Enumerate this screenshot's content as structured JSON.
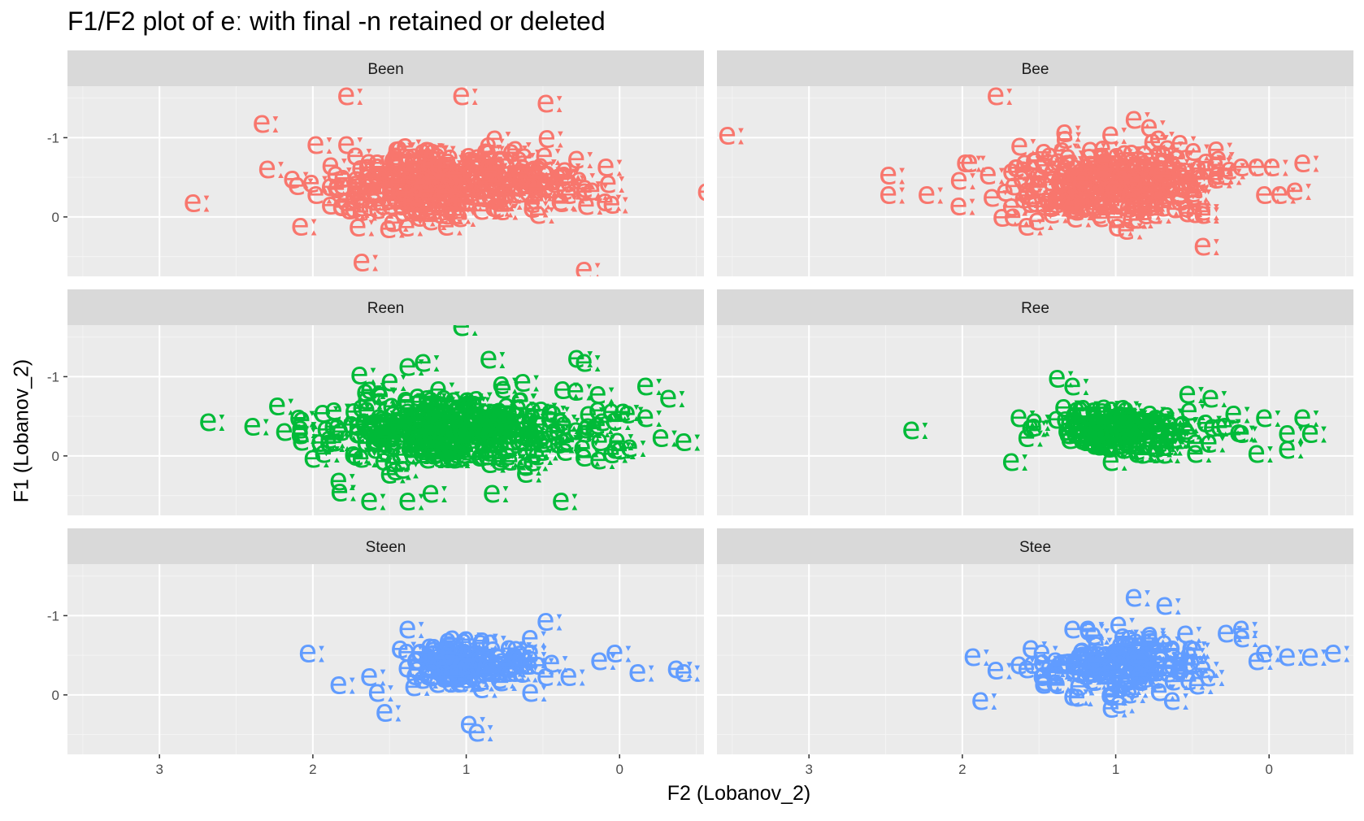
{
  "title": "F1/F2 plot of eː with final -n retained or deleted",
  "chart_data": {
    "type": "scatter",
    "title": "F1/F2 plot of eː with final -n retained or deleted",
    "xlabel": "F2 (Lobanov_2)",
    "ylabel": "F1 (Lobanov_2)",
    "x_reversed": true,
    "y_reversed": true,
    "xlim": [
      3.6,
      -0.55
    ],
    "ylim": [
      -1.65,
      0.75
    ],
    "x_ticks": [
      3,
      2,
      1,
      0
    ],
    "y_ticks": [
      -1,
      0
    ],
    "point_label": "eː",
    "facet_layout": "3 rows x 2 columns",
    "grid": true,
    "panel_background": "#ebebeb",
    "strip_background": "#d9d9d9",
    "facets": [
      {
        "name": "Been",
        "color": "#f8766d",
        "cluster": {
          "cx": 1.1,
          "cy": -0.45,
          "sx": 0.42,
          "sy": 0.24,
          "n": 320
        },
        "points": [
          [
            1.75,
            -1.55
          ],
          [
            1.0,
            -1.55
          ],
          [
            2.3,
            -1.2
          ],
          [
            1.95,
            -0.93
          ],
          [
            1.75,
            -0.93
          ],
          [
            0.25,
            -0.75
          ],
          [
            2.75,
            -0.2
          ],
          [
            2.05,
            0.1
          ],
          [
            1.4,
            -0.3
          ],
          [
            1.6,
            -0.15
          ],
          [
            1.55,
            -0.65
          ],
          [
            1.45,
            0.05
          ],
          [
            1.1,
            0.1
          ],
          [
            0.35,
            -0.2
          ],
          [
            0.15,
            -0.35
          ],
          [
            1.65,
            0.55
          ],
          [
            0.2,
            0.65
          ],
          [
            1.95,
            -0.3
          ],
          [
            0.5,
            -0.05
          ],
          [
            0.3,
            -0.3
          ]
        ]
      },
      {
        "name": "Bee",
        "color": "#f8766d",
        "cluster": {
          "cx": 1.0,
          "cy": -0.45,
          "sx": 0.33,
          "sy": 0.22,
          "n": 280
        },
        "points": [
          [
            3.5,
            -1.05
          ],
          [
            1.75,
            -1.55
          ],
          [
            2.45,
            -0.55
          ],
          [
            2.45,
            -0.3
          ],
          [
            2.2,
            -0.3
          ],
          [
            1.3,
            -1.0
          ],
          [
            0.85,
            -1.25
          ],
          [
            0.75,
            -1.15
          ],
          [
            1.95,
            -0.7
          ],
          [
            1.8,
            -0.55
          ],
          [
            1.65,
            -0.15
          ],
          [
            1.55,
            -0.35
          ],
          [
            1.55,
            0.1
          ],
          [
            0.9,
            0.15
          ],
          [
            0.4,
            -0.05
          ],
          [
            0.4,
            0.35
          ],
          [
            0.3,
            -0.75
          ],
          [
            0.15,
            -0.65
          ],
          [
            0.05,
            -0.65
          ],
          [
            -0.05,
            -0.65
          ],
          [
            0.0,
            -0.3
          ],
          [
            -0.1,
            -0.3
          ],
          [
            -0.2,
            -0.35
          ],
          [
            -0.25,
            -0.7
          ],
          [
            0.55,
            -0.95
          ],
          [
            0.55,
            -0.55
          ]
        ]
      },
      {
        "name": "Reen",
        "color": "#00ba38",
        "cluster": {
          "cx": 1.05,
          "cy": -0.35,
          "sx": 0.45,
          "sy": 0.23,
          "n": 340
        },
        "points": [
          [
            1.0,
            -1.65
          ],
          [
            2.65,
            -0.45
          ],
          [
            2.2,
            -0.65
          ],
          [
            2.05,
            -0.3
          ],
          [
            1.9,
            -0.05
          ],
          [
            1.35,
            -1.15
          ],
          [
            1.25,
            -1.2
          ],
          [
            1.6,
            -0.85
          ],
          [
            0.25,
            -1.25
          ],
          [
            0.2,
            -1.2
          ],
          [
            0.6,
            -0.95
          ],
          [
            -0.2,
            -0.9
          ],
          [
            -0.35,
            -0.75
          ],
          [
            -0.2,
            -0.5
          ],
          [
            -0.45,
            -0.2
          ],
          [
            1.8,
            0.3
          ],
          [
            1.6,
            0.55
          ],
          [
            1.35,
            0.55
          ],
          [
            0.8,
            0.45
          ],
          [
            0.35,
            0.55
          ],
          [
            1.2,
            0.45
          ],
          [
            0.4,
            -0.55
          ],
          [
            0.1,
            -0.2
          ],
          [
            0.0,
            -0.1
          ],
          [
            -0.3,
            -0.25
          ]
        ]
      },
      {
        "name": "Ree",
        "color": "#00ba38",
        "cluster": {
          "cx": 0.95,
          "cy": -0.35,
          "sx": 0.25,
          "sy": 0.15,
          "n": 150
        },
        "points": [
          [
            2.3,
            -0.35
          ],
          [
            1.65,
            0.05
          ],
          [
            1.6,
            -0.5
          ],
          [
            1.55,
            -0.25
          ],
          [
            1.35,
            -1.0
          ],
          [
            1.25,
            -0.9
          ],
          [
            1.5,
            -0.45
          ],
          [
            1.2,
            -0.6
          ],
          [
            1.0,
            -0.6
          ],
          [
            0.5,
            -0.8
          ],
          [
            0.35,
            -0.75
          ],
          [
            0.2,
            -0.55
          ],
          [
            0.15,
            -0.3
          ],
          [
            0.05,
            -0.05
          ],
          [
            -0.15,
            -0.3
          ],
          [
            -0.25,
            -0.5
          ],
          [
            -0.3,
            -0.3
          ],
          [
            0.0,
            -0.5
          ],
          [
            -0.15,
            -0.1
          ],
          [
            0.5,
            -0.3
          ],
          [
            0.45,
            -0.05
          ],
          [
            0.7,
            -0.05
          ],
          [
            1.0,
            0.05
          ],
          [
            1.1,
            -0.3
          ]
        ]
      },
      {
        "name": "Steen",
        "color": "#619cff",
        "cluster": {
          "cx": 1.0,
          "cy": -0.4,
          "sx": 0.22,
          "sy": 0.14,
          "n": 130
        },
        "points": [
          [
            2.0,
            -0.55
          ],
          [
            1.8,
            -0.15
          ],
          [
            1.6,
            -0.25
          ],
          [
            1.55,
            -0.05
          ],
          [
            1.5,
            0.2
          ],
          [
            1.35,
            -0.85
          ],
          [
            1.4,
            -0.6
          ],
          [
            1.3,
            -0.45
          ],
          [
            0.95,
            0.35
          ],
          [
            0.9,
            0.45
          ],
          [
            0.55,
            -0.05
          ],
          [
            0.45,
            -0.25
          ],
          [
            0.55,
            -0.55
          ],
          [
            0.45,
            -0.95
          ],
          [
            0.3,
            -0.25
          ],
          [
            0.1,
            -0.45
          ],
          [
            0.0,
            -0.55
          ],
          [
            -0.15,
            -0.3
          ],
          [
            -0.4,
            -0.35
          ],
          [
            -0.45,
            -0.3
          ],
          [
            0.85,
            -0.3
          ],
          [
            0.65,
            -0.5
          ]
        ]
      },
      {
        "name": "Stee",
        "color": "#619cff",
        "cluster": {
          "cx": 0.95,
          "cy": -0.4,
          "sx": 0.25,
          "sy": 0.16,
          "n": 160
        },
        "points": [
          [
            1.9,
            -0.5
          ],
          [
            1.85,
            0.05
          ],
          [
            1.6,
            -0.4
          ],
          [
            1.55,
            -0.35
          ],
          [
            1.45,
            -0.55
          ],
          [
            1.45,
            -0.25
          ],
          [
            1.35,
            -0.15
          ],
          [
            1.25,
            0.0
          ],
          [
            1.25,
            -0.85
          ],
          [
            1.15,
            -0.85
          ],
          [
            0.85,
            -1.25
          ],
          [
            0.65,
            -1.15
          ],
          [
            0.95,
            -0.9
          ],
          [
            0.6,
            -0.6
          ],
          [
            0.55,
            -0.35
          ],
          [
            0.4,
            -0.35
          ],
          [
            0.6,
            0.05
          ],
          [
            0.95,
            0.1
          ],
          [
            1.0,
            0.15
          ],
          [
            0.25,
            -0.8
          ],
          [
            0.15,
            -0.85
          ],
          [
            0.0,
            -0.55
          ],
          [
            -0.15,
            -0.5
          ],
          [
            -0.3,
            -0.5
          ],
          [
            -0.45,
            -0.55
          ],
          [
            0.05,
            -0.45
          ]
        ]
      }
    ]
  }
}
